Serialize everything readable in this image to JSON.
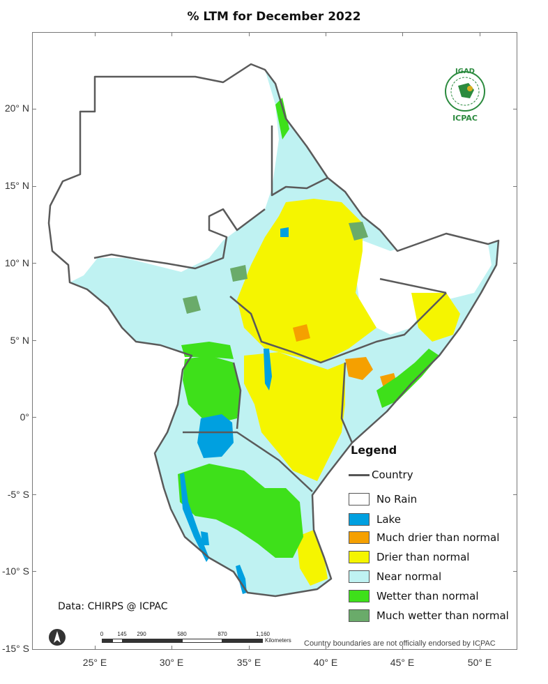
{
  "map": {
    "title": "% LTM    for  December 2022",
    "latitude_labels": [
      "20° N",
      "15° N",
      "10° N",
      "5° N",
      "0°",
      "-5° S",
      "-10° S",
      "-15° S"
    ],
    "longitude_labels": [
      "25° E",
      "30° E",
      "35° E",
      "40° E",
      "45° E",
      "50° E"
    ]
  },
  "legend": {
    "title": "Legend",
    "country_label": "Country",
    "items": [
      {
        "label": "No Rain",
        "color": "#ffffff"
      },
      {
        "label": "Lake",
        "color": "#00a0e0"
      },
      {
        "label": "Much drier than normal",
        "color": "#f5a000"
      },
      {
        "label": "Drier than normal",
        "color": "#f5f500"
      },
      {
        "label": "Near normal",
        "color": "#bff2f2"
      },
      {
        "label": "Wetter than normal",
        "color": "#3ee01a"
      },
      {
        "label": "Much wetter than normal",
        "color": "#6aab6a"
      }
    ]
  },
  "source": "Data: CHIRPS @ ICPAC",
  "disclaimer": "Country boundaries are not officially endorsed by ICPAC",
  "scalebar": {
    "labels": [
      "0",
      "145",
      "290",
      "580",
      "870",
      "1,160"
    ],
    "unit": "Kilometers"
  },
  "logo": {
    "top_text": "IGAD",
    "bottom_text": "ICPAC"
  },
  "colors": {
    "border": "#5a5a5a",
    "no_rain": "#ffffff",
    "lake": "#00a0e0",
    "much_drier": "#f5a000",
    "drier": "#f5f500",
    "near_normal": "#bff2f2",
    "wetter": "#3ee01a",
    "much_wetter": "#6aab6a"
  }
}
